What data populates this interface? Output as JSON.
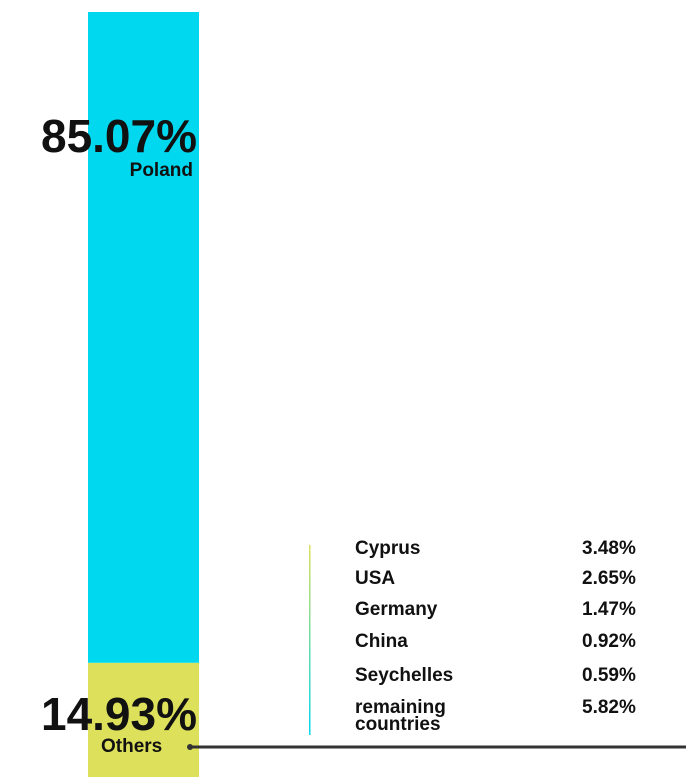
{
  "chart_data": {
    "type": "stacked_bar",
    "series": [
      {
        "name": "Poland",
        "color": "#00d8f0",
        "values": [
          85.07
        ],
        "value_labels": [
          "85.07%"
        ]
      },
      {
        "name": "Others",
        "color": "#dde05a",
        "values": [
          14.93
        ],
        "value_labels": [
          "14.93%"
        ]
      }
    ]
  },
  "table": {
    "rows": [
      [
        "Cyprus",
        "3.48%"
      ],
      [
        "USA",
        "2.65%"
      ],
      [
        "Germany",
        "1.47%"
      ],
      [
        "China",
        "0.92%"
      ],
      [
        "Seychelles",
        "0.59%"
      ],
      [
        "remaining countries",
        "5.82%"
      ]
    ]
  }
}
